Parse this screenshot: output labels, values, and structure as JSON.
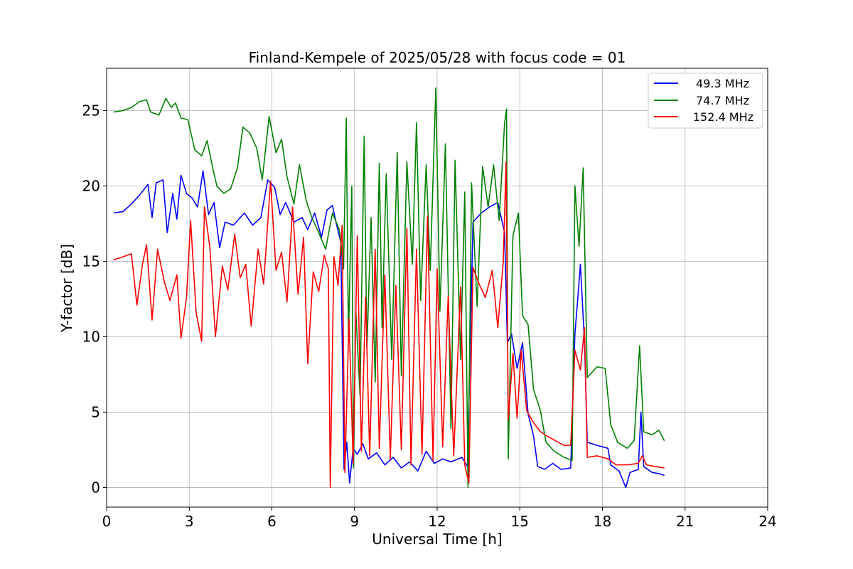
{
  "chart_data": {
    "type": "line",
    "title": "Finland-Kempele of 2025/05/28 with focus code = 01",
    "xlabel": "Universal Time [h]",
    "ylabel": "Y-factor [dB]",
    "xlim": [
      0,
      24
    ],
    "ylim": [
      -1.3,
      27.8
    ],
    "xticks": [
      0,
      3,
      6,
      9,
      12,
      15,
      18,
      21,
      24
    ],
    "yticks": [
      0,
      5,
      10,
      15,
      20,
      25
    ],
    "grid": true,
    "legend_position": "top-right",
    "series": [
      {
        "name": "49.3 MHz",
        "color": "#0000ff",
        "points": [
          [
            0.25,
            18.2
          ],
          [
            0.6,
            18.3
          ],
          [
            0.9,
            18.8
          ],
          [
            1.2,
            19.4
          ],
          [
            1.5,
            20.1
          ],
          [
            1.65,
            17.9
          ],
          [
            1.8,
            20.2
          ],
          [
            2.05,
            20.4
          ],
          [
            2.2,
            16.9
          ],
          [
            2.4,
            19.5
          ],
          [
            2.55,
            17.8
          ],
          [
            2.7,
            20.7
          ],
          [
            2.9,
            19.5
          ],
          [
            3.1,
            19.2
          ],
          [
            3.3,
            18.6
          ],
          [
            3.5,
            21.0
          ],
          [
            3.7,
            18.1
          ],
          [
            3.9,
            18.9
          ],
          [
            4.1,
            15.9
          ],
          [
            4.3,
            17.6
          ],
          [
            4.6,
            17.4
          ],
          [
            5.0,
            18.2
          ],
          [
            5.3,
            17.4
          ],
          [
            5.6,
            17.9
          ],
          [
            5.85,
            20.4
          ],
          [
            6.1,
            19.9
          ],
          [
            6.3,
            18.1
          ],
          [
            6.5,
            18.9
          ],
          [
            6.8,
            17.6
          ],
          [
            7.1,
            17.9
          ],
          [
            7.3,
            17.1
          ],
          [
            7.55,
            18.2
          ],
          [
            7.8,
            16.6
          ],
          [
            8.0,
            18.4
          ],
          [
            8.2,
            18.7
          ],
          [
            8.35,
            17.4
          ],
          [
            8.5,
            16.3
          ],
          [
            8.62,
            1.2
          ],
          [
            8.72,
            3.0
          ],
          [
            8.82,
            0.3
          ],
          [
            8.95,
            2.6
          ],
          [
            9.1,
            2.2
          ],
          [
            9.3,
            2.9
          ],
          [
            9.5,
            1.9
          ],
          [
            9.8,
            2.3
          ],
          [
            10.1,
            1.5
          ],
          [
            10.4,
            2.0
          ],
          [
            10.7,
            1.3
          ],
          [
            11.0,
            1.7
          ],
          [
            11.3,
            1.1
          ],
          [
            11.6,
            2.4
          ],
          [
            11.9,
            1.6
          ],
          [
            12.2,
            1.9
          ],
          [
            12.5,
            1.7
          ],
          [
            12.9,
            2.0
          ],
          [
            13.1,
            1.4
          ],
          [
            13.3,
            17.6
          ],
          [
            13.6,
            18.2
          ],
          [
            13.9,
            18.6
          ],
          [
            14.2,
            18.9
          ],
          [
            14.45,
            16.9
          ],
          [
            14.55,
            9.6
          ],
          [
            14.7,
            10.2
          ],
          [
            14.9,
            7.9
          ],
          [
            15.1,
            9.6
          ],
          [
            15.3,
            4.9
          ],
          [
            15.5,
            3.4
          ],
          [
            15.65,
            1.4
          ],
          [
            15.9,
            1.2
          ],
          [
            16.2,
            1.6
          ],
          [
            16.5,
            1.2
          ],
          [
            16.85,
            1.3
          ],
          [
            17.0,
            10.2
          ],
          [
            17.1,
            12.4
          ],
          [
            17.2,
            14.8
          ],
          [
            17.35,
            9.6
          ],
          [
            17.45,
            3.0
          ],
          [
            17.8,
            2.8
          ],
          [
            18.2,
            2.6
          ],
          [
            18.3,
            1.5
          ],
          [
            18.6,
            1.1
          ],
          [
            18.85,
            0.0
          ],
          [
            19.0,
            1.0
          ],
          [
            19.3,
            1.2
          ],
          [
            19.4,
            5.0
          ],
          [
            19.5,
            1.4
          ],
          [
            19.8,
            1.0
          ],
          [
            20.1,
            0.9
          ],
          [
            20.25,
            0.8
          ]
        ]
      },
      {
        "name": "74.7 MHz",
        "color": "#008000",
        "points": [
          [
            0.25,
            24.9
          ],
          [
            0.6,
            25.0
          ],
          [
            0.9,
            25.2
          ],
          [
            1.2,
            25.6
          ],
          [
            1.45,
            25.7
          ],
          [
            1.6,
            24.9
          ],
          [
            1.9,
            24.7
          ],
          [
            2.15,
            25.8
          ],
          [
            2.35,
            25.2
          ],
          [
            2.5,
            25.5
          ],
          [
            2.7,
            24.5
          ],
          [
            2.95,
            24.4
          ],
          [
            3.05,
            23.6
          ],
          [
            3.2,
            22.4
          ],
          [
            3.45,
            22.0
          ],
          [
            3.65,
            23.0
          ],
          [
            3.85,
            21.2
          ],
          [
            4.0,
            20.0
          ],
          [
            4.25,
            19.5
          ],
          [
            4.5,
            19.8
          ],
          [
            4.75,
            21.2
          ],
          [
            4.95,
            23.9
          ],
          [
            5.2,
            23.5
          ],
          [
            5.45,
            22.5
          ],
          [
            5.65,
            20.4
          ],
          [
            5.9,
            24.6
          ],
          [
            6.15,
            22.2
          ],
          [
            6.35,
            23.1
          ],
          [
            6.55,
            20.6
          ],
          [
            6.8,
            18.8
          ],
          [
            7.0,
            21.4
          ],
          [
            7.25,
            19.0
          ],
          [
            7.45,
            17.9
          ],
          [
            7.7,
            16.9
          ],
          [
            7.95,
            15.8
          ],
          [
            8.2,
            18.2
          ],
          [
            8.45,
            17.1
          ],
          [
            8.6,
            14.5
          ],
          [
            8.7,
            24.5
          ],
          [
            8.78,
            9.8
          ],
          [
            8.9,
            20.0
          ],
          [
            8.96,
            1.3
          ],
          [
            9.05,
            11.6
          ],
          [
            9.2,
            6.1
          ],
          [
            9.35,
            23.3
          ],
          [
            9.45,
            9.2
          ],
          [
            9.6,
            17.9
          ],
          [
            9.75,
            7.0
          ],
          [
            9.9,
            21.5
          ],
          [
            10.0,
            10.6
          ],
          [
            10.15,
            20.8
          ],
          [
            10.35,
            8.5
          ],
          [
            10.55,
            22.2
          ],
          [
            10.7,
            7.4
          ],
          [
            10.9,
            21.6
          ],
          [
            11.1,
            14.8
          ],
          [
            11.25,
            24.2
          ],
          [
            11.4,
            12.4
          ],
          [
            11.6,
            21.4
          ],
          [
            11.75,
            14.4
          ],
          [
            11.95,
            26.5
          ],
          [
            12.1,
            11.7
          ],
          [
            12.3,
            22.8
          ],
          [
            12.5,
            3.9
          ],
          [
            12.65,
            21.7
          ],
          [
            12.85,
            8.5
          ],
          [
            13.0,
            19.6
          ],
          [
            13.12,
            0.0
          ],
          [
            13.25,
            20.2
          ],
          [
            13.45,
            12.0
          ],
          [
            13.65,
            21.3
          ],
          [
            13.85,
            18.6
          ],
          [
            14.05,
            21.4
          ],
          [
            14.25,
            17.7
          ],
          [
            14.45,
            24.2
          ],
          [
            14.52,
            25.1
          ],
          [
            14.58,
            1.9
          ],
          [
            14.75,
            16.7
          ],
          [
            14.95,
            18.2
          ],
          [
            15.1,
            11.4
          ],
          [
            15.3,
            10.8
          ],
          [
            15.5,
            6.5
          ],
          [
            15.75,
            5.1
          ],
          [
            15.95,
            3.0
          ],
          [
            16.25,
            2.4
          ],
          [
            16.6,
            2.0
          ],
          [
            16.9,
            1.8
          ],
          [
            17.0,
            20.0
          ],
          [
            17.15,
            16.0
          ],
          [
            17.3,
            21.2
          ],
          [
            17.45,
            7.3
          ],
          [
            17.8,
            8.0
          ],
          [
            18.1,
            7.9
          ],
          [
            18.3,
            4.2
          ],
          [
            18.55,
            3.0
          ],
          [
            18.9,
            2.6
          ],
          [
            19.15,
            3.1
          ],
          [
            19.35,
            9.4
          ],
          [
            19.5,
            3.7
          ],
          [
            19.8,
            3.5
          ],
          [
            20.05,
            3.8
          ],
          [
            20.25,
            3.1
          ]
        ]
      },
      {
        "name": "152.4 MHz",
        "color": "#ff0000",
        "points": [
          [
            0.25,
            15.1
          ],
          [
            0.6,
            15.3
          ],
          [
            0.9,
            15.5
          ],
          [
            1.1,
            12.1
          ],
          [
            1.3,
            14.8
          ],
          [
            1.45,
            16.1
          ],
          [
            1.65,
            11.1
          ],
          [
            1.85,
            15.8
          ],
          [
            2.1,
            13.6
          ],
          [
            2.3,
            12.4
          ],
          [
            2.55,
            14.1
          ],
          [
            2.7,
            9.9
          ],
          [
            2.9,
            12.6
          ],
          [
            3.05,
            17.7
          ],
          [
            3.25,
            11.6
          ],
          [
            3.45,
            9.7
          ],
          [
            3.55,
            18.6
          ],
          [
            3.75,
            15.9
          ],
          [
            3.95,
            10.0
          ],
          [
            4.2,
            14.7
          ],
          [
            4.4,
            13.1
          ],
          [
            4.65,
            16.8
          ],
          [
            4.85,
            13.9
          ],
          [
            5.05,
            14.8
          ],
          [
            5.25,
            10.7
          ],
          [
            5.5,
            15.8
          ],
          [
            5.7,
            13.5
          ],
          [
            5.95,
            20.3
          ],
          [
            6.15,
            14.4
          ],
          [
            6.35,
            15.6
          ],
          [
            6.55,
            12.3
          ],
          [
            6.75,
            18.6
          ],
          [
            6.95,
            12.8
          ],
          [
            7.15,
            16.6
          ],
          [
            7.3,
            8.2
          ],
          [
            7.5,
            14.3
          ],
          [
            7.7,
            13.0
          ],
          [
            7.9,
            15.4
          ],
          [
            8.05,
            14.5
          ],
          [
            8.12,
            0.0
          ],
          [
            8.25,
            15.3
          ],
          [
            8.4,
            13.4
          ],
          [
            8.55,
            17.4
          ],
          [
            8.65,
            1.0
          ],
          [
            8.8,
            11.2
          ],
          [
            8.95,
            1.6
          ],
          [
            9.1,
            16.7
          ],
          [
            9.25,
            2.4
          ],
          [
            9.4,
            12.6
          ],
          [
            9.55,
            2.1
          ],
          [
            9.75,
            15.8
          ],
          [
            9.9,
            2.6
          ],
          [
            10.1,
            14.1
          ],
          [
            10.3,
            1.9
          ],
          [
            10.5,
            13.4
          ],
          [
            10.7,
            2.5
          ],
          [
            10.9,
            17.2
          ],
          [
            11.05,
            1.5
          ],
          [
            11.25,
            15.8
          ],
          [
            11.45,
            2.2
          ],
          [
            11.65,
            18.0
          ],
          [
            11.85,
            1.8
          ],
          [
            12.0,
            14.5
          ],
          [
            12.2,
            2.7
          ],
          [
            12.4,
            12.7
          ],
          [
            12.6,
            2.1
          ],
          [
            12.85,
            13.3
          ],
          [
            13.0,
            1.5
          ],
          [
            13.15,
            0.3
          ],
          [
            13.3,
            14.6
          ],
          [
            13.5,
            13.6
          ],
          [
            13.75,
            12.6
          ],
          [
            14.0,
            14.4
          ],
          [
            14.2,
            10.6
          ],
          [
            14.4,
            15.0
          ],
          [
            14.5,
            21.6
          ],
          [
            14.58,
            4.5
          ],
          [
            14.75,
            8.9
          ],
          [
            14.9,
            4.6
          ],
          [
            15.05,
            9.1
          ],
          [
            15.25,
            5.1
          ],
          [
            15.5,
            4.3
          ],
          [
            15.75,
            3.7
          ],
          [
            16.0,
            3.4
          ],
          [
            16.3,
            3.1
          ],
          [
            16.6,
            2.8
          ],
          [
            16.85,
            2.8
          ],
          [
            17.0,
            9.1
          ],
          [
            17.2,
            7.8
          ],
          [
            17.35,
            10.6
          ],
          [
            17.45,
            2.0
          ],
          [
            17.8,
            2.1
          ],
          [
            18.2,
            1.9
          ],
          [
            18.5,
            1.5
          ],
          [
            18.9,
            1.5
          ],
          [
            19.3,
            1.6
          ],
          [
            19.45,
            2.1
          ],
          [
            19.6,
            1.5
          ],
          [
            19.9,
            1.4
          ],
          [
            20.25,
            1.3
          ]
        ]
      }
    ]
  }
}
